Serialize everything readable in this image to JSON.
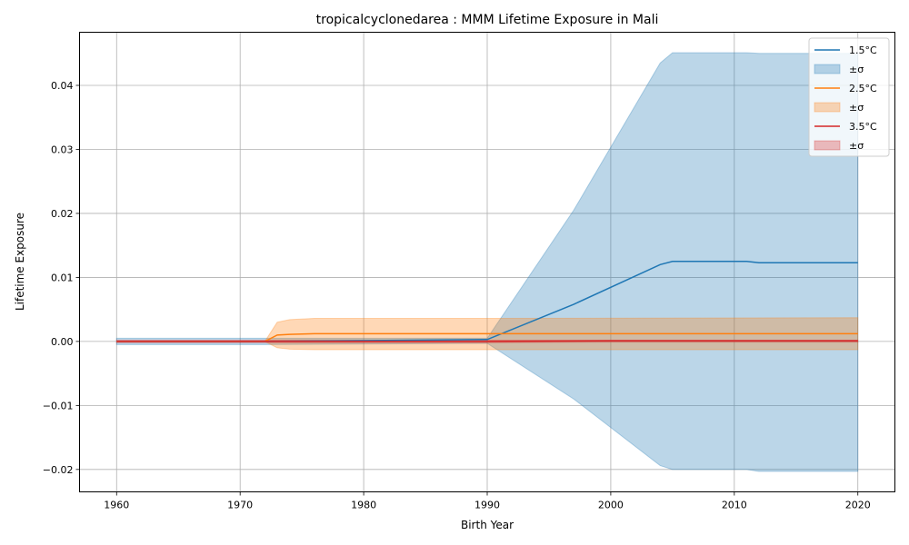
{
  "chart_data": {
    "type": "area",
    "title": "tropicalcyclonedarea : MMM Lifetime Exposure in Mali",
    "xlabel": "Birth Year",
    "ylabel": "Lifetime Exposure",
    "xlim": [
      1957,
      2023
    ],
    "ylim": [
      -0.0235,
      0.0483
    ],
    "xticks": [
      1960,
      1970,
      1980,
      1990,
      2000,
      2010,
      2020
    ],
    "xtick_labels": [
      "1960",
      "1970",
      "1980",
      "1990",
      "2000",
      "2010",
      "2020"
    ],
    "yticks": [
      -0.02,
      -0.01,
      0.0,
      0.01,
      0.02,
      0.03,
      0.04
    ],
    "ytick_labels": [
      "−0.02",
      "−0.01",
      "0.00",
      "0.01",
      "0.02",
      "0.03",
      "0.04"
    ],
    "grid": true,
    "legend_position": "top-right",
    "series": [
      {
        "name": "1.5°C",
        "band_label": "±σ",
        "color": "#1f77b4",
        "band_color": "#1f77b4",
        "band_opacity": 0.3,
        "x": [
          1960,
          1972,
          1990,
          1997,
          2004,
          2005,
          2011,
          2012,
          2020
        ],
        "mean": [
          0.0,
          0.0,
          0.0003,
          0.0058,
          0.012,
          0.0125,
          0.0125,
          0.0123,
          0.0123
        ],
        "upper": [
          0.0005,
          0.0005,
          0.0005,
          0.0205,
          0.0435,
          0.0451,
          0.0451,
          0.045,
          0.045
        ],
        "lower": [
          -0.0005,
          -0.0005,
          -0.0003,
          -0.009,
          -0.0194,
          -0.02,
          -0.02,
          -0.0203,
          -0.0203
        ]
      },
      {
        "name": "2.5°C",
        "band_label": "±σ",
        "color": "#ff7f0e",
        "band_color": "#ff7f0e",
        "band_opacity": 0.3,
        "x": [
          1960,
          1972,
          1973,
          1974,
          1976,
          1990,
          2020
        ],
        "mean": [
          0.0,
          0.0,
          0.001,
          0.0011,
          0.0012,
          0.0012,
          0.0012
        ],
        "upper": [
          0.0,
          0.0,
          0.003,
          0.0034,
          0.0036,
          0.0036,
          0.0037
        ],
        "lower": [
          0.0,
          0.0,
          -0.001,
          -0.0012,
          -0.0013,
          -0.0013,
          -0.0013
        ]
      },
      {
        "name": "3.5°C",
        "band_label": "±σ",
        "color": "#d62728",
        "band_color": "#d62728",
        "band_opacity": 0.3,
        "x": [
          1960,
          1990,
          2000,
          2020
        ],
        "mean": [
          0.0,
          0.0,
          0.0001,
          0.0001
        ],
        "upper": [
          0.0002,
          0.0002,
          0.0002,
          0.0002
        ],
        "lower": [
          -0.0002,
          -0.0002,
          -0.0001,
          -0.0001
        ]
      }
    ]
  }
}
